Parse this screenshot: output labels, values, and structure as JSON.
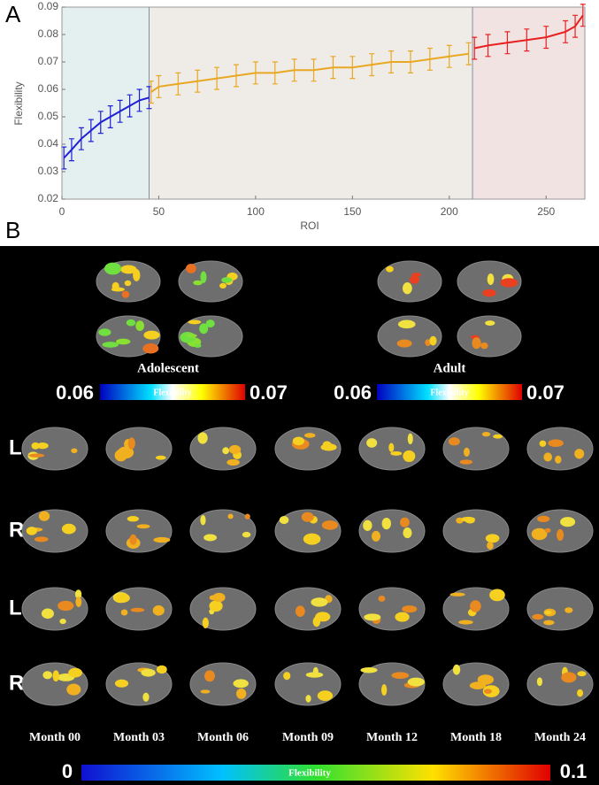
{
  "chart_data": {
    "type": "errorline",
    "panel_label": "A",
    "x_label": "ROI",
    "y_label": "Flexibility",
    "xlim": [
      0,
      270
    ],
    "ylim": [
      0.02,
      0.09
    ],
    "xticks": [
      0,
      50,
      100,
      150,
      200,
      250
    ],
    "yticks": [
      0.02,
      0.03,
      0.04,
      0.05,
      0.06,
      0.07,
      0.08,
      0.09
    ],
    "regions": [
      {
        "xlim": [
          0,
          45
        ],
        "color": "#e4f0f0"
      },
      {
        "xlim": [
          45,
          212
        ],
        "color": "#efebe6"
      },
      {
        "xlim": [
          212,
          270
        ],
        "color": "#f2e3e3"
      }
    ],
    "series": [
      {
        "color": "#1f1fd6",
        "x": [
          1,
          5,
          10,
          15,
          20,
          25,
          30,
          35,
          40,
          45
        ],
        "values": [
          0.035,
          0.038,
          0.042,
          0.045,
          0.048,
          0.05,
          0.052,
          0.054,
          0.056,
          0.057
        ],
        "errors": [
          0.004,
          0.004,
          0.004,
          0.004,
          0.004,
          0.004,
          0.004,
          0.004,
          0.004,
          0.004
        ]
      },
      {
        "color": "#e8a823",
        "x": [
          46,
          50,
          60,
          70,
          80,
          90,
          100,
          110,
          120,
          130,
          140,
          150,
          160,
          170,
          180,
          190,
          200,
          210
        ],
        "values": [
          0.059,
          0.061,
          0.062,
          0.063,
          0.064,
          0.065,
          0.066,
          0.066,
          0.067,
          0.067,
          0.068,
          0.068,
          0.069,
          0.07,
          0.07,
          0.071,
          0.072,
          0.073
        ],
        "errors": [
          0.004,
          0.004,
          0.004,
          0.004,
          0.004,
          0.004,
          0.004,
          0.004,
          0.004,
          0.004,
          0.004,
          0.004,
          0.004,
          0.004,
          0.004,
          0.004,
          0.004,
          0.004
        ]
      },
      {
        "color": "#e82020",
        "x": [
          213,
          220,
          230,
          240,
          250,
          260,
          265,
          269
        ],
        "values": [
          0.075,
          0.076,
          0.077,
          0.078,
          0.079,
          0.081,
          0.083,
          0.087
        ],
        "errors": [
          0.004,
          0.004,
          0.004,
          0.004,
          0.004,
          0.004,
          0.004,
          0.004
        ]
      }
    ]
  },
  "panel_b": {
    "label": "B",
    "groups": [
      {
        "title": "Adolescent",
        "min_label": "0.06",
        "max_label": "0.07",
        "bar_title": "Flexibility"
      },
      {
        "title": "Adult",
        "min_label": "0.06",
        "max_label": "0.07",
        "bar_title": "Flexibility"
      }
    ],
    "rows": [
      "L",
      "R",
      "L",
      "R"
    ],
    "months": [
      "Month 00",
      "Month 03",
      "Month 06",
      "Month 09",
      "Month 12",
      "Month 18",
      "Month 24"
    ],
    "colorbar": {
      "min_label": "0",
      "max_label": "0.1",
      "title": "Flexibility"
    }
  }
}
